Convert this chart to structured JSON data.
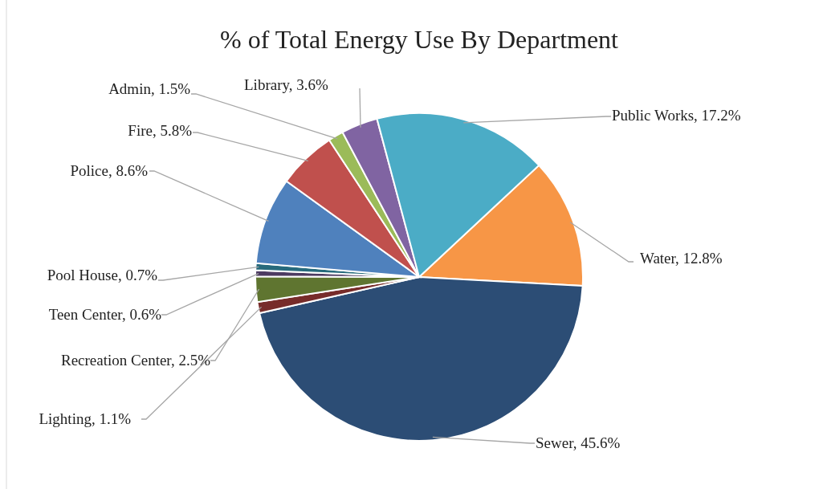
{
  "chart_data": {
    "type": "pie",
    "title": "% of Total Energy Use By Department",
    "categories": [
      "Water",
      "Sewer",
      "Lighting",
      "Recreation Center",
      "Teen Center",
      "Pool House",
      "Police",
      "Fire",
      "Admin",
      "Library",
      "Public Works"
    ],
    "values": [
      12.8,
      45.6,
      1.1,
      2.5,
      0.6,
      0.7,
      8.6,
      5.8,
      1.5,
      3.6,
      17.2
    ],
    "value_labels": [
      "12.8%",
      "45.6%",
      "1.1%",
      "2.5%",
      "0.6%",
      "0.7%",
      "8.6%",
      "5.8%",
      "1.5%",
      "3.6%",
      "17.2%"
    ],
    "colors": [
      "#f79646",
      "#2c4d75",
      "#772c2a",
      "#5f7530",
      "#4d3b62",
      "#276a7c",
      "#4f81bd",
      "#c0504d",
      "#9bbb59",
      "#8064a2",
      "#4bacc6"
    ]
  }
}
